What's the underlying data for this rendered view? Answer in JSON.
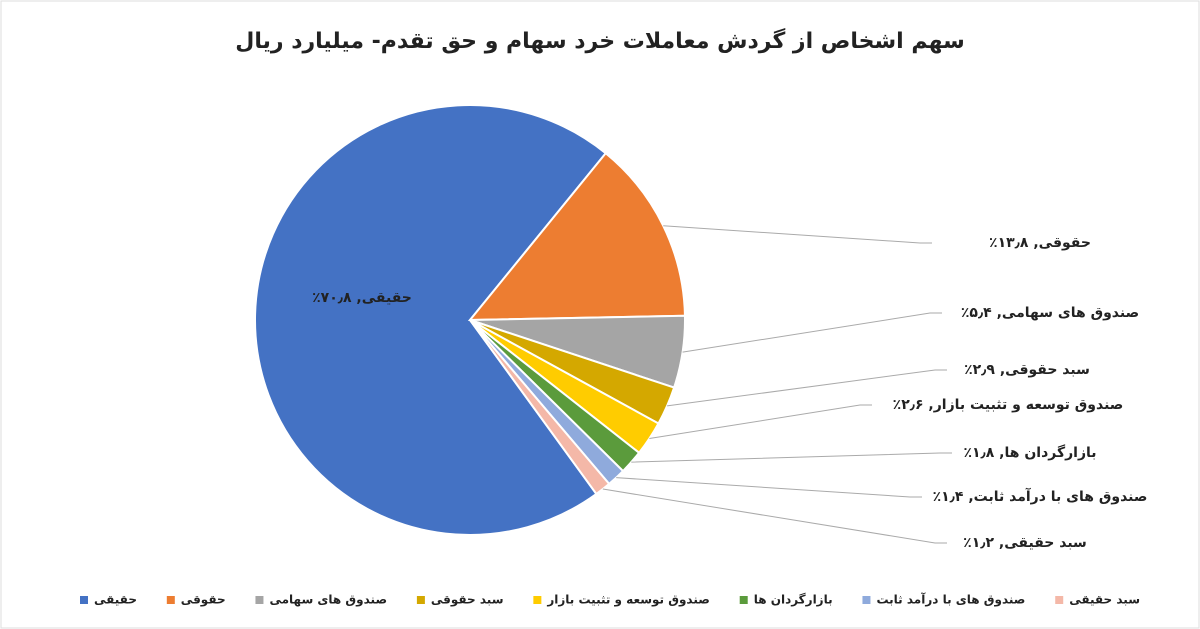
{
  "chart_data": {
    "type": "pie",
    "title": "سهم اشخاص از گردش معاملات خرد سهام و حق تقدم- میلیارد ریال",
    "categories": [
      "حقیقی",
      "حقوقی",
      "صندوق های سهامی",
      "سبد حقوقی",
      "صندوق توسعه و تثبیت بازار",
      "بازارگردان ها",
      "صندوق های با درآمد ثابت",
      "سبد حقیقی"
    ],
    "values": [
      70.8,
      13.8,
      5.4,
      2.9,
      2.6,
      1.8,
      1.4,
      1.2
    ],
    "value_labels": [
      "حقیقی, ۷۰٫۸٪",
      "حقوقی, ۱۳٫۸٪",
      "صندوق های سهامی, ۵٫۴٪",
      "سبد حقوقی, ۲٫۹٪",
      "صندوق توسعه و تثبیت بازار, ۲٫۶٪",
      "بازارگردان ها, ۱٫۸٪",
      "صندوق های با درآمد ثابت, ۱٫۴٪",
      "سبد حقیقی, ۱٫۲٪"
    ],
    "colors": [
      "#4472c4",
      "#ed7d31",
      "#a5a5a5",
      "#d4a800",
      "#ffcc00",
      "#5b9b3c",
      "#8faadc",
      "#f4b8a8"
    ],
    "legend": "bottom"
  }
}
